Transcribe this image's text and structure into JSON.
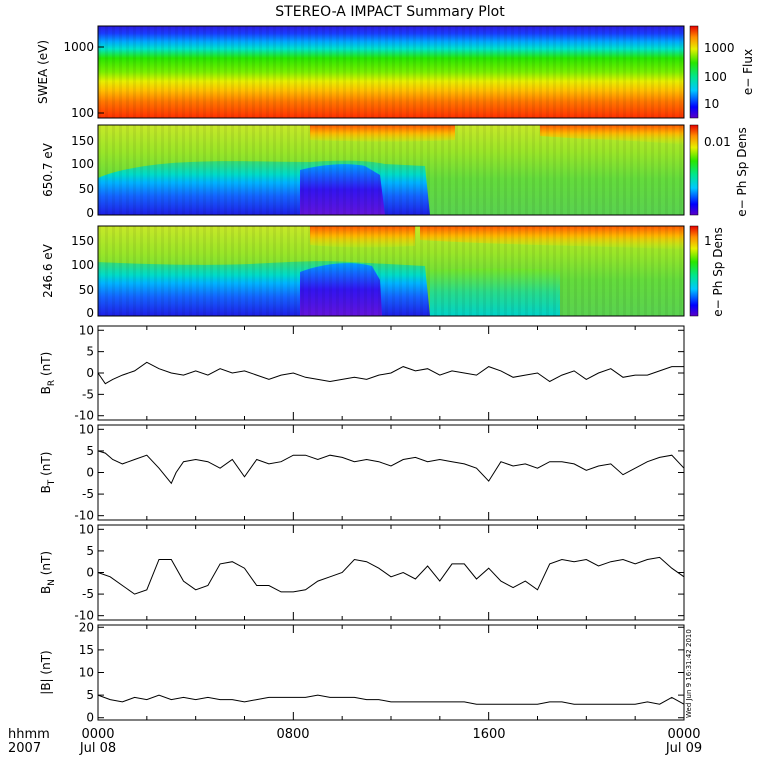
{
  "title": "STEREO-A IMPACT Summary Plot",
  "stamp": "Wed Jun  9 16:31:42 2010",
  "time_axis": {
    "label_line1": "hhmm",
    "label_line2": "2007",
    "ticks": [
      {
        "hour": 0,
        "top": "0000",
        "bottom": "Jul 08"
      },
      {
        "hour": 8,
        "top": "0800",
        "bottom": ""
      },
      {
        "hour": 16,
        "top": "1600",
        "bottom": ""
      },
      {
        "hour": 24,
        "top": "0000",
        "bottom": "Jul 09"
      }
    ],
    "range_hours": [
      0,
      24
    ]
  },
  "chart_data": [
    {
      "type": "heatmap",
      "panel": "swea",
      "ylabel": "SWEA (eV)",
      "y_scale": "log",
      "ylim": [
        100,
        2000
      ],
      "y_ticks": [
        "1000",
        "100"
      ],
      "colorbar": {
        "label": "e− Flux",
        "scale": "log",
        "ticks": [
          "1000",
          "100",
          "10"
        ]
      }
    },
    {
      "type": "heatmap",
      "panel": "pad650",
      "ylabel": "650.7 eV",
      "ylim": [
        0,
        180
      ],
      "y_ticks": [
        "150",
        "100",
        "50",
        "0"
      ],
      "colorbar": {
        "label": "e− Ph Sp Dens",
        "ticks": [
          "0.01"
        ]
      }
    },
    {
      "type": "heatmap",
      "panel": "pad246",
      "ylabel": "246.6 eV",
      "ylim": [
        0,
        180
      ],
      "y_ticks": [
        "150",
        "100",
        "50",
        "0"
      ],
      "colorbar": {
        "label": "e− Ph Sp Dens",
        "ticks": [
          "1"
        ]
      }
    },
    {
      "type": "line",
      "panel": "br",
      "ylabel_main": "B",
      "ylabel_sub": "R",
      "ylabel_unit": " (nT)",
      "ylim": [
        -11,
        11
      ],
      "y_ticks": [
        10,
        5,
        0,
        -5,
        -10
      ],
      "x": [
        0,
        0.3,
        0.6,
        1,
        1.5,
        2,
        2.5,
        3,
        3.5,
        4,
        4.5,
        5,
        5.5,
        6,
        6.5,
        7,
        7.5,
        8,
        8.5,
        9,
        9.5,
        10,
        10.5,
        11,
        11.5,
        12,
        12.5,
        13,
        13.5,
        14,
        14.5,
        15,
        15.5,
        16,
        16.5,
        17,
        17.5,
        18,
        18.5,
        19,
        19.5,
        20,
        20.5,
        21,
        21.5,
        22,
        22.5,
        23,
        23.5,
        24
      ],
      "y": [
        0,
        -2.5,
        -1.5,
        -0.5,
        0.5,
        2.5,
        1,
        0,
        -0.5,
        0.5,
        -0.5,
        1,
        0,
        0.5,
        -0.5,
        -1.5,
        -0.5,
        0,
        -1,
        -1.5,
        -2,
        -1.5,
        -1,
        -1.5,
        -0.5,
        0,
        1.5,
        0.5,
        1,
        -0.5,
        0.5,
        0,
        -0.5,
        1.5,
        0.5,
        -1,
        -0.5,
        0,
        -2,
        -0.5,
        0.5,
        -1.5,
        0,
        1,
        -1,
        -0.5,
        -0.5,
        0.5,
        1.5,
        1.5
      ]
    },
    {
      "type": "line",
      "panel": "bt",
      "ylabel_main": "B",
      "ylabel_sub": "T",
      "ylabel_unit": " (nT)",
      "ylim": [
        -11,
        11
      ],
      "y_ticks": [
        10,
        5,
        0,
        -5,
        -10
      ],
      "x": [
        0,
        0.3,
        0.6,
        1,
        1.5,
        2,
        2.5,
        3,
        3.2,
        3.5,
        4,
        4.5,
        5,
        5.5,
        6,
        6.5,
        7,
        7.5,
        8,
        8.5,
        9,
        9.5,
        10,
        10.5,
        11,
        11.5,
        12,
        12.5,
        13,
        13.5,
        14,
        14.5,
        15,
        15.5,
        16,
        16.5,
        17,
        17.5,
        18,
        18.5,
        19,
        19.5,
        20,
        20.5,
        21,
        21.5,
        22,
        22.5,
        23,
        23.5,
        24
      ],
      "y": [
        5,
        4.5,
        3,
        2,
        3,
        4,
        1,
        -2.5,
        0,
        2.5,
        3,
        2.5,
        1,
        3,
        -1,
        3,
        2,
        2.5,
        4,
        4,
        3,
        4,
        3.5,
        2.5,
        3,
        2.5,
        1.5,
        3,
        3.5,
        2.5,
        3,
        2.5,
        2,
        1,
        -2,
        2.5,
        1.5,
        2,
        1,
        2.5,
        2.5,
        2,
        0.5,
        1.5,
        2,
        -0.5,
        1,
        2.5,
        3.5,
        4,
        1
      ]
    },
    {
      "type": "line",
      "panel": "bn",
      "ylabel_main": "B",
      "ylabel_sub": "N",
      "ylabel_unit": " (nT)",
      "ylim": [
        -11,
        11
      ],
      "y_ticks": [
        10,
        5,
        0,
        -5,
        -10
      ],
      "x": [
        0,
        0.5,
        1,
        1.5,
        2,
        2.5,
        3,
        3.5,
        4,
        4.5,
        5,
        5.5,
        6,
        6.5,
        7,
        7.5,
        8,
        8.5,
        9,
        9.5,
        10,
        10.5,
        11,
        11.5,
        12,
        12.5,
        13,
        13.5,
        14,
        14.5,
        15,
        15.5,
        16,
        16.5,
        17,
        17.5,
        18,
        18.5,
        19,
        19.5,
        20,
        20.5,
        21,
        21.5,
        22,
        22.5,
        23,
        23.5,
        24
      ],
      "y": [
        0,
        -1,
        -3,
        -5,
        -4,
        3,
        3,
        -2,
        -4,
        -3,
        2,
        2.5,
        1,
        -3,
        -3,
        -4.5,
        -4.5,
        -4,
        -2,
        -1,
        0,
        3,
        2.5,
        1,
        -1,
        0,
        -1.5,
        1.5,
        -2,
        2,
        2,
        -1.5,
        1,
        -2,
        -3.5,
        -2,
        -4,
        2,
        3,
        2.5,
        3,
        1.5,
        2.5,
        3,
        2,
        3,
        3.5,
        1,
        -1
      ]
    },
    {
      "type": "line",
      "panel": "bmag",
      "ylabel_main": "|B|",
      "ylabel_sub": "",
      "ylabel_unit": " (nT)",
      "ylim": [
        -0.5,
        20.5
      ],
      "y_ticks": [
        20,
        15,
        10,
        5,
        0
      ],
      "x": [
        0,
        0.5,
        1,
        1.5,
        2,
        2.5,
        3,
        3.5,
        4,
        4.5,
        5,
        5.5,
        6,
        6.5,
        7,
        7.5,
        8,
        8.5,
        9,
        9.5,
        10,
        10.5,
        11,
        11.5,
        12,
        12.5,
        13,
        13.5,
        14,
        14.5,
        15,
        15.5,
        16,
        16.5,
        17,
        17.5,
        18,
        18.5,
        19,
        19.5,
        20,
        20.5,
        21,
        21.5,
        22,
        22.5,
        23,
        23.5,
        24
      ],
      "y": [
        5,
        4,
        3.5,
        4.5,
        4,
        5,
        4,
        4.5,
        4,
        4.5,
        4,
        4,
        3.5,
        4,
        4.5,
        4.5,
        4.5,
        4.5,
        5,
        4.5,
        4.5,
        4.5,
        4,
        4,
        3.5,
        3.5,
        3.5,
        3.5,
        3.5,
        3.5,
        3.5,
        3,
        3,
        3,
        3,
        3,
        3,
        3.5,
        3.5,
        3,
        3,
        3,
        3,
        3,
        3,
        3.5,
        3,
        4.5,
        3
      ]
    }
  ]
}
